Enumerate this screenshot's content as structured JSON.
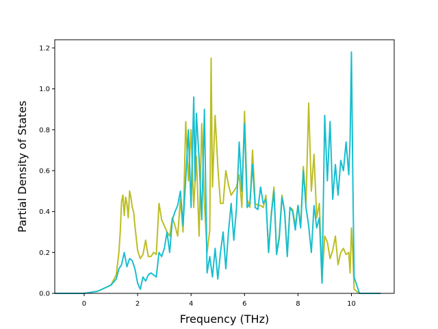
{
  "chart_data": {
    "type": "line",
    "title": "",
    "xlabel": "Frequency (THz)",
    "ylabel": "Partial Density of States",
    "xlim": [
      -1.1,
      11.6
    ],
    "ylim": [
      0,
      1.24
    ],
    "xticks": [
      0,
      2,
      4,
      6,
      8,
      10
    ],
    "xtick_labels": [
      "0",
      "2",
      "4",
      "6",
      "8",
      "10"
    ],
    "yticks": [
      0,
      0.2,
      0.4,
      0.6,
      0.8,
      1.0,
      1.2
    ],
    "ytick_labels": [
      "0.0",
      "0.2",
      "0.4",
      "0.6",
      "0.8",
      "1.0",
      "1.2"
    ],
    "grid": false,
    "legend": "none",
    "series": [
      {
        "color": "#bcbd22",
        "x": [
          -1.1,
          0.0,
          0.5,
          1.0,
          1.2,
          1.3,
          1.35,
          1.4,
          1.45,
          1.5,
          1.55,
          1.6,
          1.65,
          1.7,
          1.75,
          1.8,
          1.85,
          1.9,
          1.95,
          2.0,
          2.1,
          2.2,
          2.3,
          2.4,
          2.5,
          2.6,
          2.7,
          2.8,
          2.9,
          3.0,
          3.1,
          3.2,
          3.3,
          3.4,
          3.5,
          3.6,
          3.7,
          3.8,
          3.9,
          4.0,
          4.1,
          4.2,
          4.3,
          4.4,
          4.5,
          4.6,
          4.7,
          4.75,
          4.8,
          4.9,
          5.0,
          5.1,
          5.2,
          5.3,
          5.4,
          5.5,
          5.6,
          5.7,
          5.8,
          5.9,
          6.0,
          6.1,
          6.2,
          6.3,
          6.4,
          6.5,
          6.6,
          6.7,
          6.8,
          6.9,
          7.0,
          7.1,
          7.2,
          7.3,
          7.4,
          7.5,
          7.6,
          7.7,
          7.8,
          7.9,
          8.0,
          8.1,
          8.2,
          8.3,
          8.4,
          8.5,
          8.6,
          8.7,
          8.8,
          8.9,
          9.0,
          9.1,
          9.2,
          9.3,
          9.4,
          9.5,
          9.6,
          9.7,
          9.8,
          9.9,
          9.95,
          10.0,
          10.05,
          10.1,
          10.3,
          11.1
        ],
        "y": [
          0.0,
          0.0,
          0.01,
          0.04,
          0.09,
          0.2,
          0.3,
          0.45,
          0.48,
          0.38,
          0.47,
          0.44,
          0.37,
          0.5,
          0.47,
          0.42,
          0.4,
          0.33,
          0.27,
          0.21,
          0.17,
          0.19,
          0.26,
          0.18,
          0.18,
          0.2,
          0.19,
          0.44,
          0.36,
          0.33,
          0.3,
          0.28,
          0.37,
          0.33,
          0.28,
          0.46,
          0.3,
          0.84,
          0.55,
          0.8,
          0.42,
          0.67,
          0.28,
          0.83,
          0.44,
          0.2,
          0.31,
          1.15,
          0.52,
          0.87,
          0.62,
          0.44,
          0.44,
          0.6,
          0.53,
          0.48,
          0.5,
          0.52,
          0.58,
          0.42,
          0.89,
          0.46,
          0.42,
          0.7,
          0.44,
          0.43,
          0.43,
          0.42,
          0.48,
          0.2,
          0.39,
          0.52,
          0.2,
          0.28,
          0.48,
          0.4,
          0.19,
          0.42,
          0.41,
          0.33,
          0.43,
          0.33,
          0.62,
          0.44,
          0.93,
          0.5,
          0.68,
          0.37,
          0.44,
          0.06,
          0.28,
          0.25,
          0.17,
          0.21,
          0.28,
          0.14,
          0.2,
          0.22,
          0.19,
          0.2,
          0.1,
          0.32,
          0.2,
          0.02,
          0.0,
          0.0
        ]
      },
      {
        "color": "#17becf",
        "x": [
          -1.1,
          0.0,
          0.5,
          1.0,
          1.2,
          1.3,
          1.4,
          1.5,
          1.6,
          1.7,
          1.8,
          1.9,
          2.0,
          2.1,
          2.2,
          2.3,
          2.4,
          2.5,
          2.6,
          2.7,
          2.8,
          2.9,
          3.0,
          3.1,
          3.2,
          3.3,
          3.4,
          3.5,
          3.6,
          3.7,
          3.8,
          3.9,
          4.0,
          4.1,
          4.15,
          4.2,
          4.3,
          4.4,
          4.5,
          4.6,
          4.7,
          4.8,
          4.9,
          5.0,
          5.1,
          5.2,
          5.3,
          5.4,
          5.5,
          5.6,
          5.7,
          5.8,
          5.9,
          6.0,
          6.1,
          6.2,
          6.3,
          6.4,
          6.5,
          6.6,
          6.7,
          6.8,
          6.9,
          7.0,
          7.1,
          7.2,
          7.3,
          7.4,
          7.5,
          7.6,
          7.7,
          7.8,
          7.9,
          8.0,
          8.1,
          8.2,
          8.3,
          8.4,
          8.5,
          8.6,
          8.7,
          8.8,
          8.9,
          9.0,
          9.1,
          9.2,
          9.3,
          9.4,
          9.5,
          9.6,
          9.7,
          9.8,
          9.9,
          9.95,
          10.0,
          10.05,
          10.1,
          10.3,
          11.1
        ],
        "y": [
          0.0,
          0.0,
          0.01,
          0.04,
          0.07,
          0.12,
          0.14,
          0.2,
          0.13,
          0.17,
          0.16,
          0.12,
          0.05,
          0.02,
          0.08,
          0.06,
          0.09,
          0.1,
          0.09,
          0.08,
          0.2,
          0.18,
          0.22,
          0.3,
          0.2,
          0.36,
          0.4,
          0.43,
          0.5,
          0.33,
          0.56,
          0.8,
          0.42,
          0.96,
          0.55,
          0.88,
          0.66,
          0.36,
          0.9,
          0.1,
          0.18,
          0.08,
          0.22,
          0.07,
          0.2,
          0.3,
          0.12,
          0.3,
          0.44,
          0.26,
          0.42,
          0.74,
          0.5,
          0.83,
          0.42,
          0.44,
          0.63,
          0.42,
          0.41,
          0.52,
          0.44,
          0.46,
          0.2,
          0.38,
          0.5,
          0.19,
          0.27,
          0.47,
          0.4,
          0.18,
          0.42,
          0.4,
          0.31,
          0.43,
          0.32,
          0.6,
          0.42,
          0.33,
          0.2,
          0.43,
          0.32,
          0.37,
          0.05,
          0.87,
          0.55,
          0.84,
          0.46,
          0.63,
          0.48,
          0.65,
          0.6,
          0.74,
          0.58,
          0.75,
          1.18,
          0.58,
          0.08,
          0.0,
          0.0
        ]
      }
    ]
  }
}
